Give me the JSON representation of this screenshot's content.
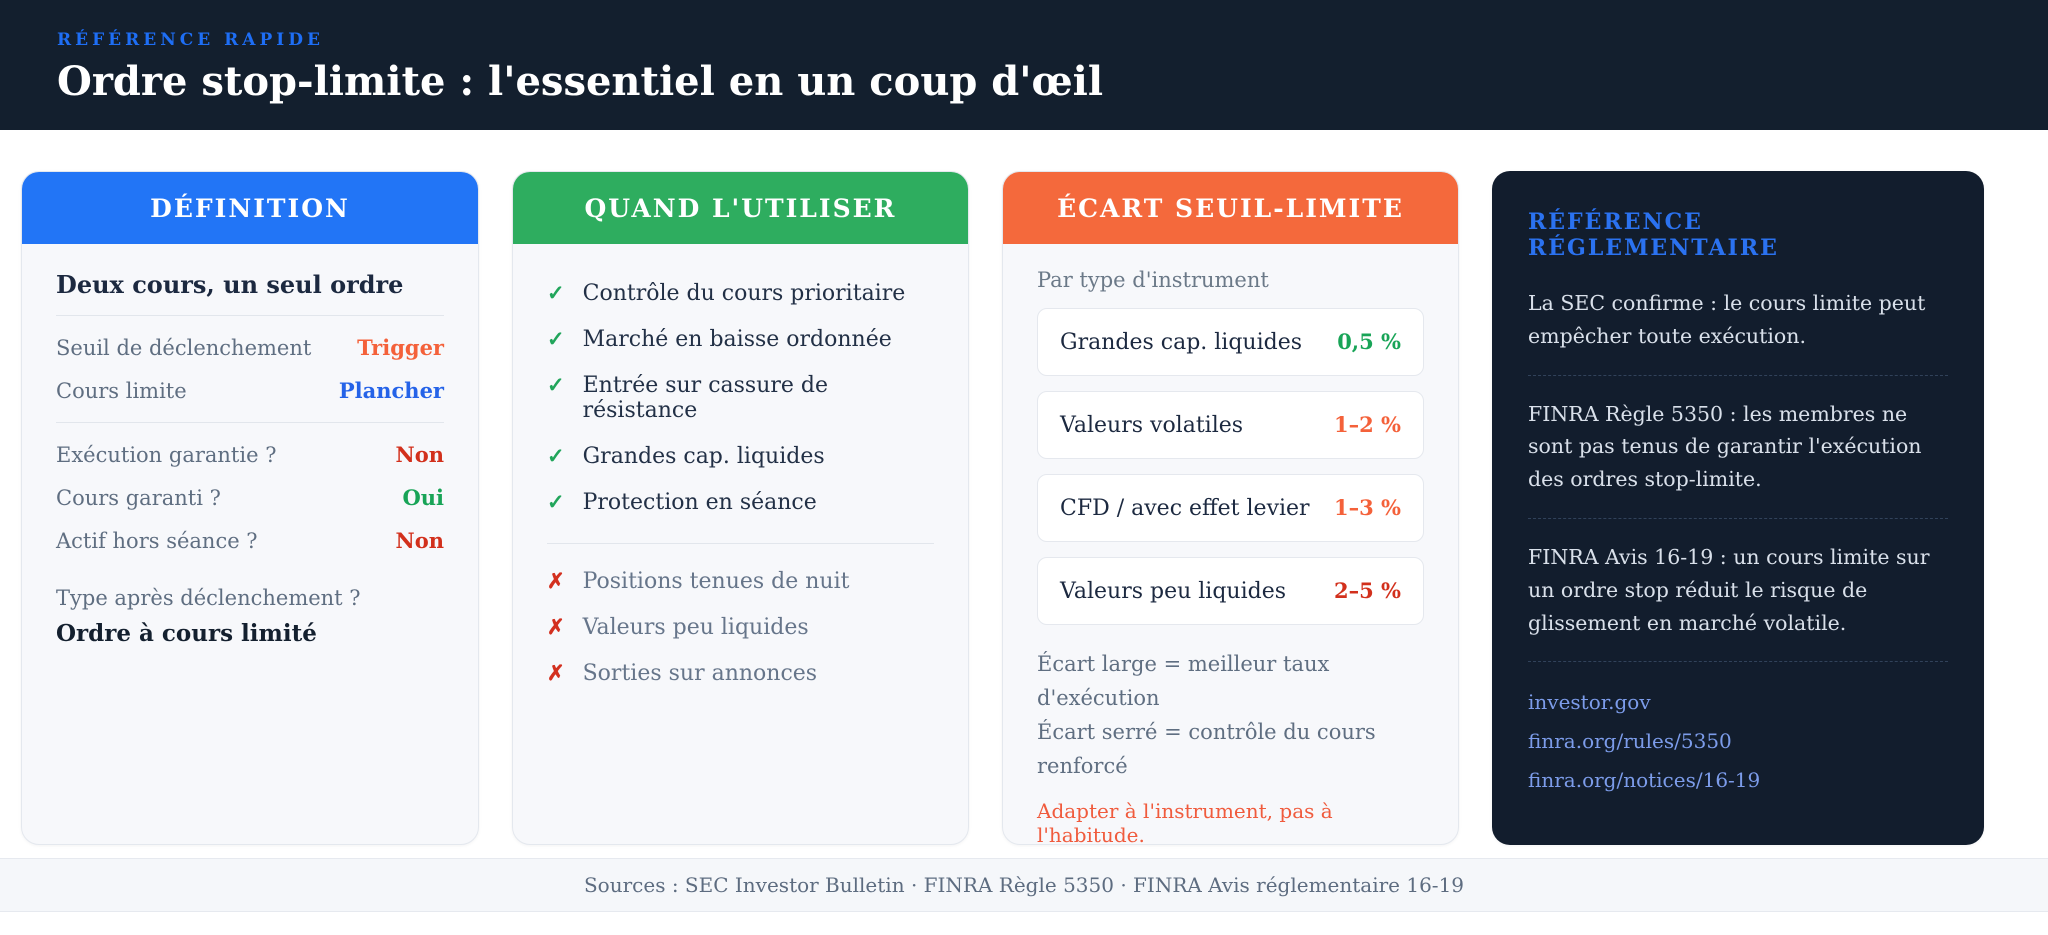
{
  "header": {
    "eyebrow": "RÉFÉRENCE RAPIDE",
    "title": "Ordre stop-limite : l'essentiel en un coup d'œil"
  },
  "icons": {
    "check": "✓",
    "cross": "✗"
  },
  "cards": {
    "definition": {
      "title": "DÉFINITION",
      "subtitle": "Deux cours, un seul ordre",
      "rows_top": [
        {
          "label": "Seuil de déclenchement",
          "value": "Trigger"
        },
        {
          "label": "Cours limite",
          "value": "Plancher"
        }
      ],
      "rows_bottom": [
        {
          "label": "Exécution garantie ?",
          "value": "Non"
        },
        {
          "label": "Cours garanti ?",
          "value": "Oui"
        },
        {
          "label": "Actif hors séance ?",
          "value": "Non"
        }
      ],
      "type_label": "Type après déclenchement ?",
      "type_value": "Ordre à cours limité"
    },
    "usage": {
      "title": "QUAND L'UTILISER",
      "do_items": [
        "Contrôle du cours prioritaire",
        "Marché en baisse ordonnée",
        "Entrée sur cassure de résistance",
        "Grandes cap. liquides",
        "Protection en séance"
      ],
      "dont_items": [
        "Positions tenues de nuit",
        "Valeurs peu liquides",
        "Sorties sur annonces"
      ]
    },
    "spread": {
      "title": "ÉCART SEUIL-LIMITE",
      "subtitle": "Par type d'instrument",
      "rows": [
        {
          "label": "Grandes cap. liquides",
          "value": "0,5 %"
        },
        {
          "label": "Valeurs volatiles",
          "value": "1–2 %"
        },
        {
          "label": "CFD / avec effet levier",
          "value": "1–3 %"
        },
        {
          "label": "Valeurs peu liquides",
          "value": "2–5 %"
        }
      ],
      "note1": "Écart large = meilleur taux d'exécution",
      "note2": "Écart serré = contrôle du cours renforcé",
      "warning": "Adapter à l'instrument, pas à l'habitude."
    },
    "regulatory": {
      "title": "RÉFÉRENCE RÉGLEMENTAIRE",
      "paragraphs": [
        "La SEC confirme : le cours limite peut empêcher toute exécution.",
        "FINRA Règle 5350 : les membres ne sont pas tenus de garantir l'exécution des ordres stop-limite.",
        "FINRA Avis 16-19 : un cours limite sur un ordre stop réduit le risque de glissement en marché volatile."
      ],
      "links": [
        "investor.gov",
        "finra.org/rules/5350",
        "finra.org/notices/16-19"
      ]
    }
  },
  "footer": {
    "text": "Sources : SEC Investor Bulletin · FINRA Règle 5350 · FINRA Avis réglementaire 16-19"
  },
  "colors": {
    "banner_bg": "#131f2e",
    "accent_blue": "#2275f6",
    "accent_green": "#2ead5f",
    "accent_orange": "#f4693c",
    "value_orange": "#f4613a",
    "value_blue": "#2563e8",
    "value_red": "#d2301c",
    "value_green": "#18a457",
    "warning_orange": "#f05b3d",
    "link_blue": "#7c9cea",
    "dark_card_bg": "#121d2d"
  }
}
